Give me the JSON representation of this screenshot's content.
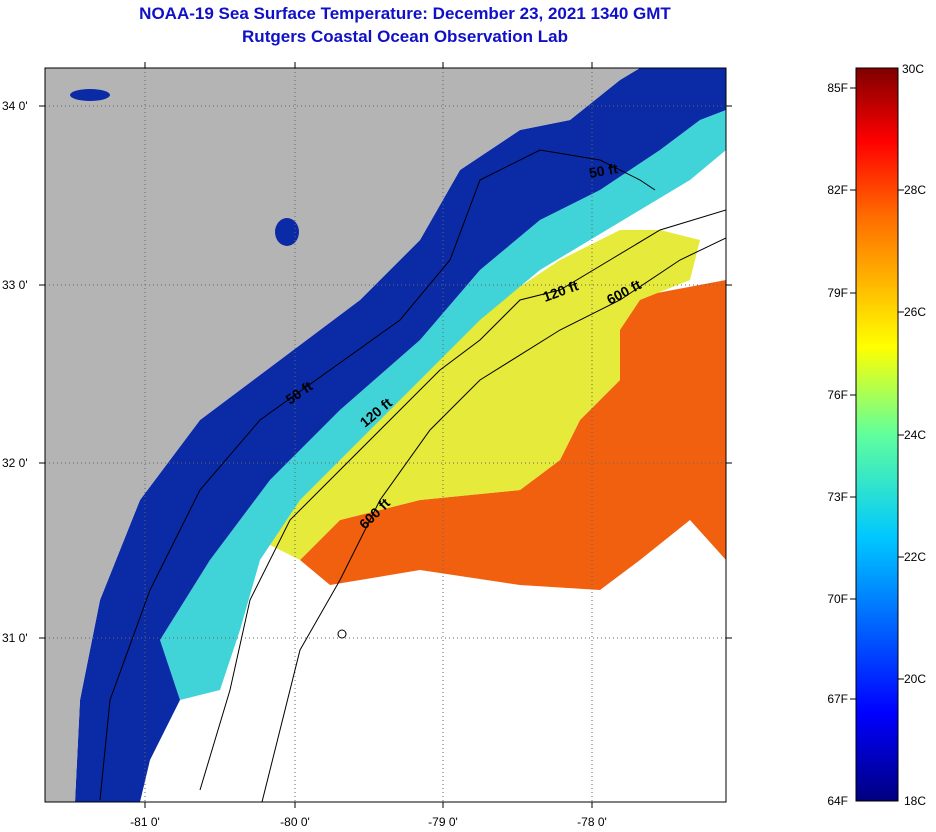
{
  "title": {
    "line1": "NOAA-19 Sea Surface Temperature:  December 23, 2021 1340 GMT",
    "line2": "Rutgers Coastal Ocean Observation Lab"
  },
  "map": {
    "lat_ticks": [
      "34 0'",
      "33 0'",
      "32 0'",
      "31 0'"
    ],
    "lon_ticks": [
      "-81 0'",
      "-80 0'",
      "-79 0'",
      "-78 0'"
    ],
    "contours": [
      {
        "label": "50 ft"
      },
      {
        "label": "120 ft"
      },
      {
        "label": "600 ft"
      },
      {
        "label": "50 ft"
      },
      {
        "label": "120 ft"
      },
      {
        "label": "600 ft"
      }
    ],
    "colors": {
      "land": "#b4b4b4",
      "cloud": "#ffffff",
      "cold": "#0b2aa6",
      "mid": "#3ad8e0",
      "warm": "#e8e830",
      "hot": "#f25c0c"
    }
  },
  "colorbar": {
    "f_labels": [
      "85F",
      "82F",
      "79F",
      "76F",
      "73F",
      "70F",
      "67F",
      "64F"
    ],
    "c_labels": [
      "30C",
      "28C",
      "26C",
      "24C",
      "22C",
      "20C",
      "18C"
    ]
  }
}
